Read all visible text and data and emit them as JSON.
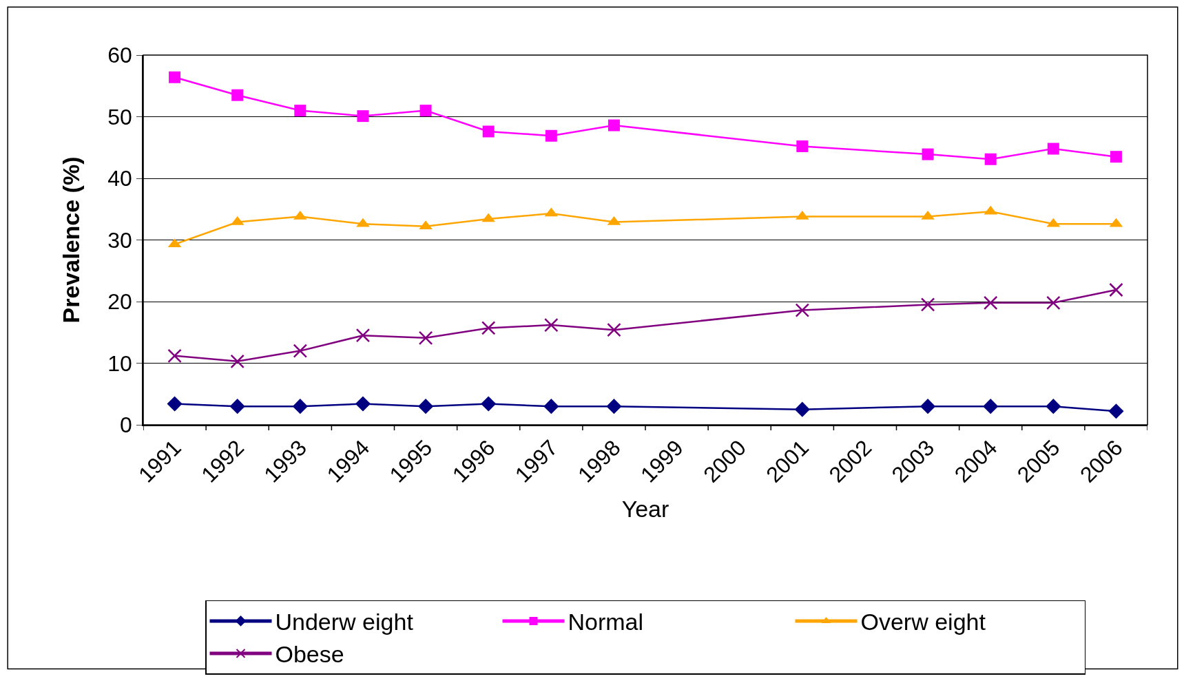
{
  "chart_data": {
    "type": "line",
    "xlabel": "Year",
    "ylabel": "Prevalence (%)",
    "categories": [
      "1991",
      "1992",
      "1993",
      "1994",
      "1995",
      "1996",
      "1997",
      "1998",
      "1999",
      "2000",
      "2001",
      "2002",
      "2003",
      "2004",
      "2005",
      "2006"
    ],
    "series": [
      {
        "name": "Underw eight",
        "color": "#000080",
        "marker": "diamond",
        "values": [
          3.4,
          3.0,
          3.0,
          3.4,
          3.0,
          3.4,
          3.0,
          3.0,
          null,
          null,
          2.5,
          null,
          3.0,
          3.0,
          3.0,
          2.2
        ]
      },
      {
        "name": "Normal",
        "color": "#ff00ff",
        "marker": "square",
        "values": [
          56.4,
          53.5,
          51.0,
          50.1,
          51.0,
          47.6,
          46.9,
          48.6,
          null,
          null,
          45.2,
          null,
          43.9,
          43.1,
          44.8,
          43.5
        ]
      },
      {
        "name": "Overw eight",
        "color": "#ffa500",
        "marker": "triangle",
        "values": [
          29.3,
          32.9,
          33.8,
          32.6,
          32.2,
          33.4,
          34.3,
          32.9,
          null,
          null,
          33.8,
          null,
          33.8,
          34.6,
          32.6,
          32.6
        ]
      },
      {
        "name": "Obese",
        "color": "#800080",
        "marker": "cross",
        "values": [
          11.2,
          10.3,
          12.0,
          14.5,
          14.1,
          15.7,
          16.2,
          15.4,
          null,
          null,
          18.6,
          null,
          19.5,
          19.8,
          19.8,
          21.9
        ]
      }
    ],
    "ylim": [
      0,
      60
    ],
    "yticks": [
      0,
      10,
      20,
      30,
      40,
      50,
      60
    ],
    "grid": "y",
    "legend": "bottom",
    "line_style": "solid"
  }
}
